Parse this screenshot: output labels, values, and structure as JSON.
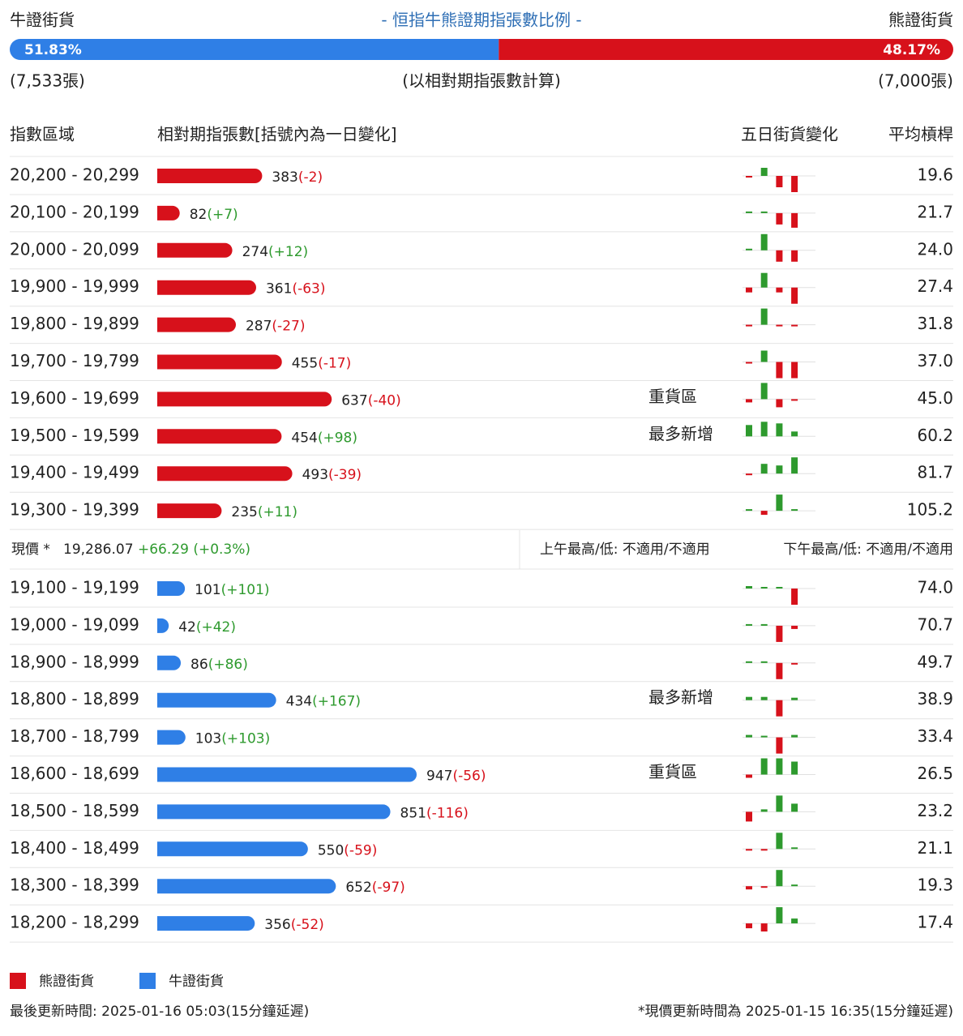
{
  "header": {
    "bull_label": "牛證街貨",
    "title": "- 恒指牛熊證期指張數比例 -",
    "bear_label": "熊證街貨",
    "bull_ratio": {
      "value": 51.83,
      "label": "51.83%"
    },
    "bear_ratio": {
      "value": 48.17,
      "label": "48.17%"
    },
    "bull_count": "(7,533張)",
    "note": "(以相對期指張數計算)",
    "bear_count": "(7,000張)"
  },
  "colors": {
    "bull": "#2f7fe6",
    "bear": "#d7111b",
    "up": "#2e9a2e",
    "down": "#d7111b"
  },
  "table": {
    "columns": [
      "指數區域",
      "相對期指張數[括號內為一日變化]",
      "五日街貨變化",
      "平均槓桿"
    ],
    "bear_rows": [
      {
        "range": "20,200 - 20,299",
        "count": 383,
        "change": "(-2)",
        "five_day": [
          -1,
          10,
          -14,
          -20
        ],
        "leverage": "19.6"
      },
      {
        "range": "20,100 - 20,199",
        "count": 82,
        "change": "(+7)",
        "five_day": [
          1,
          1,
          -14,
          -18
        ],
        "leverage": "21.7"
      },
      {
        "range": "20,000 - 20,099",
        "count": 274,
        "change": "(+12)",
        "five_day": [
          1,
          20,
          -14,
          -14
        ],
        "leverage": "24.0"
      },
      {
        "range": "19,900 - 19,999",
        "count": 361,
        "change": "(-63)",
        "five_day": [
          -6,
          18,
          -6,
          -20
        ],
        "leverage": "27.4"
      },
      {
        "range": "19,800 - 19,899",
        "count": 287,
        "change": "(-27)",
        "five_day": [
          -2,
          20,
          -2,
          -2
        ],
        "leverage": "31.8"
      },
      {
        "range": "19,700 - 19,799",
        "count": 455,
        "change": "(-17)",
        "five_day": [
          -2,
          14,
          -20,
          -20
        ],
        "leverage": "37.0"
      },
      {
        "range": "19,600 - 19,699",
        "count": 637,
        "change": "(-40)",
        "tag": "重貨區",
        "five_day": [
          -4,
          20,
          -10,
          -2
        ],
        "leverage": "45.0"
      },
      {
        "range": "19,500 - 19,599",
        "count": 454,
        "change": "(+98)",
        "tag": "最多新增",
        "five_day": [
          14,
          18,
          16,
          6
        ],
        "leverage": "60.2"
      },
      {
        "range": "19,400 - 19,499",
        "count": 493,
        "change": "(-39)",
        "five_day": [
          -2,
          12,
          10,
          20
        ],
        "leverage": "81.7"
      },
      {
        "range": "19,300 - 19,399",
        "count": 235,
        "change": "(+11)",
        "five_day": [
          1,
          -5,
          20,
          2
        ],
        "leverage": "105.2"
      }
    ],
    "current": {
      "label": "現價 *",
      "price": "19,286.07",
      "change": "+66.29 (+0.3%)",
      "am": "上午最高/低: 不適用/不適用",
      "pm": "下午最高/低: 不適用/不適用"
    },
    "bull_rows": [
      {
        "range": "19,100 - 19,199",
        "count": 101,
        "change": "(+101)",
        "five_day": [
          3,
          0,
          0,
          -20
        ],
        "leverage": "74.0"
      },
      {
        "range": "19,000 - 19,099",
        "count": 42,
        "change": "(+42)",
        "five_day": [
          1,
          0,
          -20,
          -4
        ],
        "leverage": "70.7"
      },
      {
        "range": "18,900 - 18,999",
        "count": 86,
        "change": "(+86)",
        "five_day": [
          1,
          0,
          -20,
          -2
        ],
        "leverage": "49.7"
      },
      {
        "range": "18,800 - 18,899",
        "count": 434,
        "change": "(+167)",
        "tag": "最多新增",
        "five_day": [
          4,
          4,
          -20,
          3
        ],
        "leverage": "38.9"
      },
      {
        "range": "18,700 - 18,799",
        "count": 103,
        "change": "(+103)",
        "five_day": [
          3,
          0,
          -20,
          3
        ],
        "leverage": "33.4"
      },
      {
        "range": "18,600 - 18,699",
        "count": 947,
        "change": "(-56)",
        "tag": "重貨區",
        "five_day": [
          -4,
          20,
          20,
          16
        ],
        "leverage": "26.5"
      },
      {
        "range": "18,500 - 18,599",
        "count": 851,
        "change": "(-116)",
        "five_day": [
          -12,
          3,
          20,
          10
        ],
        "leverage": "23.2"
      },
      {
        "range": "18,400 - 18,499",
        "count": 550,
        "change": "(-59)",
        "five_day": [
          -2,
          -2,
          20,
          2
        ],
        "leverage": "21.1"
      },
      {
        "range": "18,300 - 18,399",
        "count": 652,
        "change": "(-97)",
        "five_day": [
          -4,
          -2,
          20,
          1
        ],
        "leverage": "19.3"
      },
      {
        "range": "18,200 - 18,299",
        "count": 356,
        "change": "(-52)",
        "five_day": [
          -6,
          -10,
          20,
          6
        ],
        "leverage": "17.4"
      }
    ]
  },
  "legend": [
    "熊證街貨",
    "牛證街貨"
  ],
  "footer": {
    "left": "最後更新時間: 2025-01-16 05:03(15分鐘延遲)",
    "right": "*現價更新時間為 2025-01-15 16:35(15分鐘延遲)"
  }
}
